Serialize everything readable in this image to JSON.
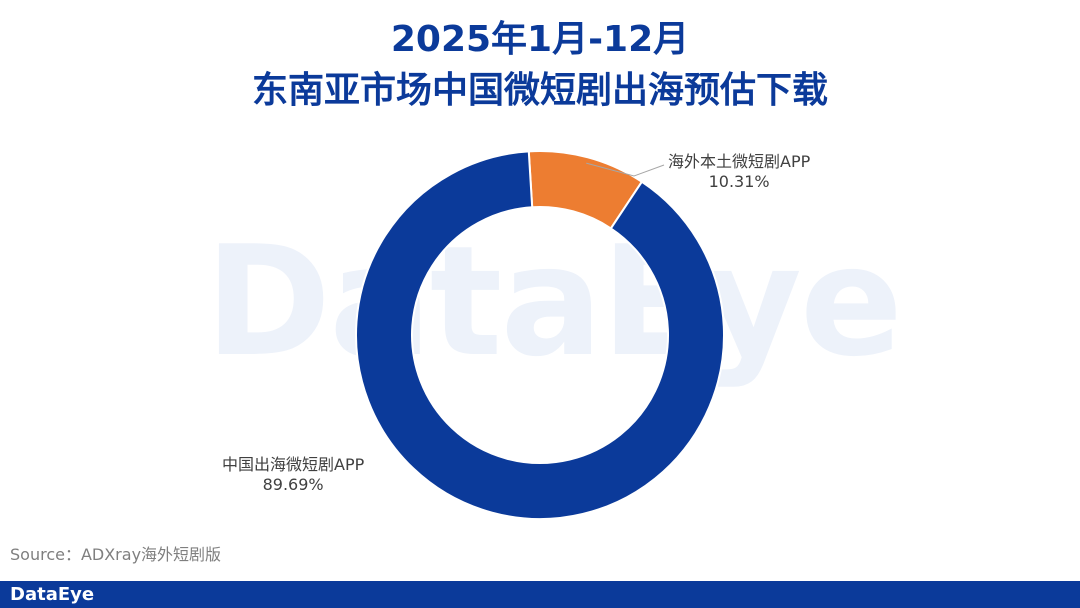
{
  "header": {
    "title_line1": "2025年1月-12月",
    "title_line2": "东南亚市场中国微短剧出海预估下载"
  },
  "watermark": "DataEye",
  "chart_data": {
    "type": "pie",
    "style": "donut",
    "title": "2025年1月-12月 东南亚市场中国微短剧出海预估下载",
    "slices": [
      {
        "name": "海外本土微短剧APP",
        "value": 10.31,
        "label": "10.31%",
        "color": "#ed7d31"
      },
      {
        "name": "中国出海微短剧APP",
        "value": 89.69,
        "label": "89.69%",
        "color": "#0b3a9a"
      }
    ]
  },
  "source": "Source：ADXray海外短剧版",
  "footer": {
    "logo": "DataEye"
  }
}
